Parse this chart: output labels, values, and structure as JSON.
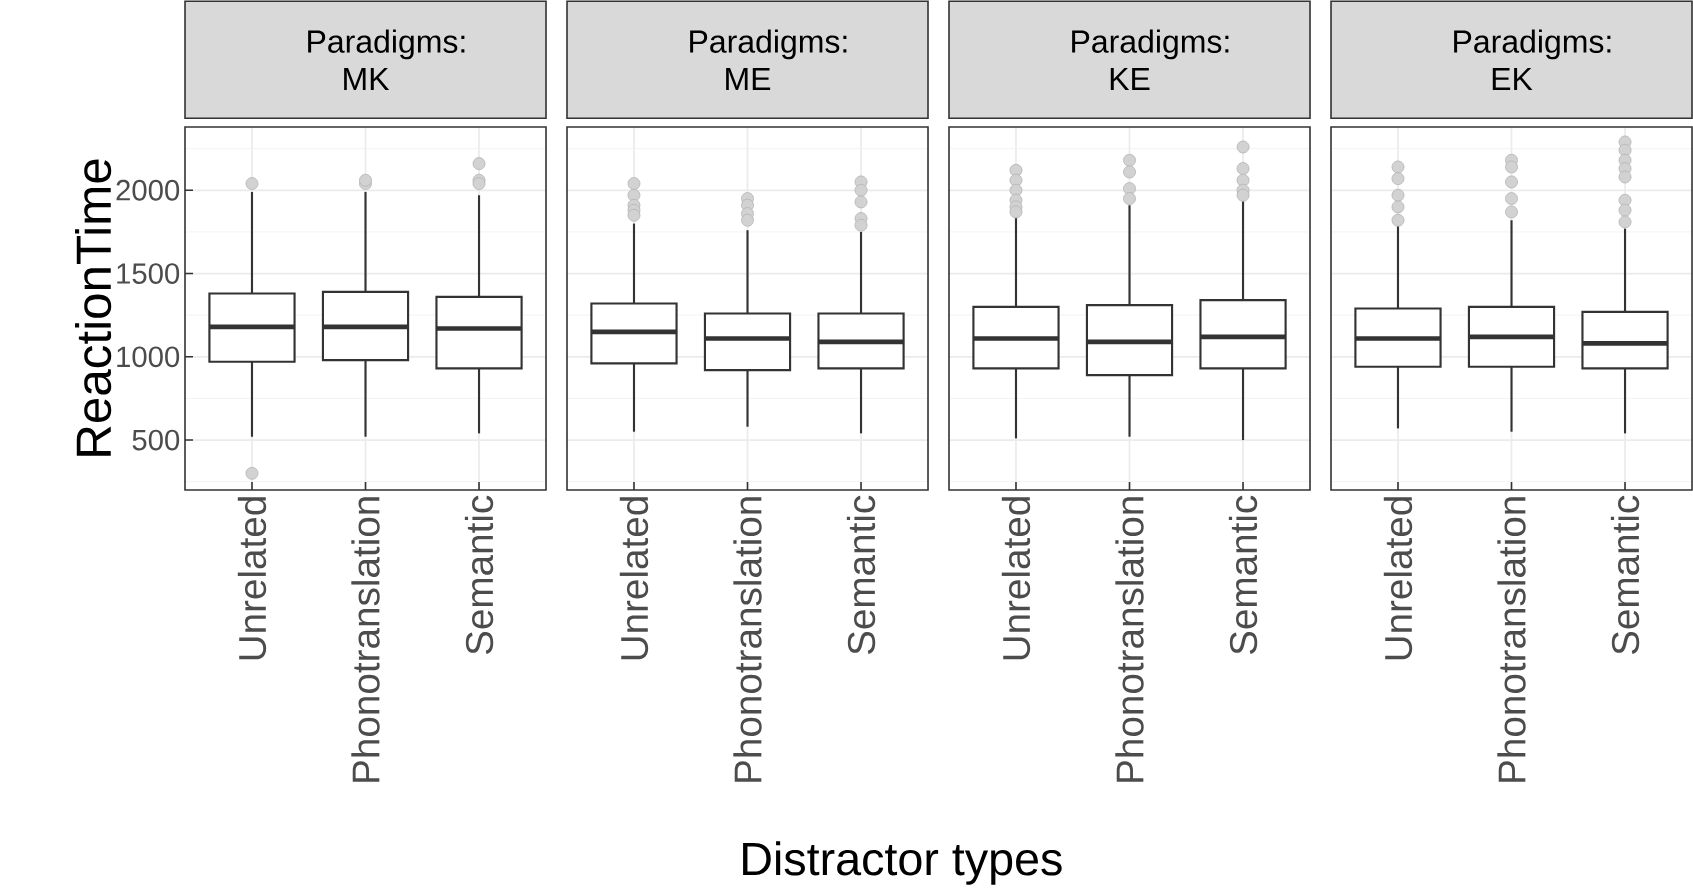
{
  "chart_data": [
    {
      "type": "box",
      "title": "Paradigms: MK",
      "ylabel": "ReactionTime",
      "categories": [
        "Unrelated",
        "Phonotranslation",
        "Semantic"
      ],
      "color": "#333333",
      "marker": "circle",
      "grid": true,
      "ylim": [
        200,
        2380
      ],
      "yticks": [
        500,
        1000,
        1500,
        2000
      ],
      "boxes": [
        {
          "low": 520,
          "q1": 970,
          "median": 1180,
          "q3": 1380,
          "high": 1990,
          "outliers": [
            2040,
            300
          ]
        },
        {
          "low": 520,
          "q1": 980,
          "median": 1180,
          "q3": 1390,
          "high": 1990,
          "outliers": [
            2040,
            2060
          ]
        },
        {
          "low": 540,
          "q1": 930,
          "median": 1170,
          "q3": 1360,
          "high": 1970,
          "outliers": [
            2160,
            2060,
            2040
          ]
        }
      ]
    },
    {
      "type": "box",
      "title": "Paradigms: ME",
      "xlabel": "Distractor types",
      "categories": [
        "Unrelated",
        "Phonotranslation",
        "Semantic"
      ],
      "color": "#333333",
      "marker": "circle",
      "grid": true,
      "ylim": [
        200,
        2380
      ],
      "yticks": [
        500,
        1000,
        1500,
        2000
      ],
      "tick_labels": "x",
      "boxes": [
        {
          "low": 550,
          "q1": 960,
          "median": 1150,
          "q3": 1320,
          "high": 1800,
          "outliers": [
            2040,
            1970,
            1910,
            1880,
            1850
          ]
        },
        {
          "low": 580,
          "q1": 920,
          "median": 1110,
          "q3": 1260,
          "high": 1760,
          "outliers": [
            1950,
            1910,
            1860,
            1820
          ]
        },
        {
          "low": 540,
          "q1": 930,
          "median": 1090,
          "q3": 1260,
          "high": 1750,
          "outliers": [
            2050,
            2000,
            1930,
            1830,
            1790
          ]
        }
      ]
    },
    {
      "type": "box",
      "title": "Paradigms: KE",
      "categories": [
        "Unrelated",
        "Phonotranslation",
        "Semantic"
      ],
      "color": "#333333",
      "marker": "circle",
      "grid": true,
      "ylim": [
        200,
        2380
      ],
      "yticks": [
        500,
        1000,
        1500,
        2000
      ],
      "tick_labels": "x",
      "boxes": [
        {
          "low": 510,
          "q1": 930,
          "median": 1110,
          "q3": 1300,
          "high": 1840,
          "outliers": [
            2120,
            2060,
            2000,
            1940,
            1900,
            1870
          ]
        },
        {
          "low": 520,
          "q1": 890,
          "median": 1090,
          "q3": 1310,
          "high": 1910,
          "outliers": [
            2180,
            2110,
            2010,
            1950
          ]
        },
        {
          "low": 500,
          "q1": 930,
          "median": 1120,
          "q3": 1340,
          "high": 1940,
          "outliers": [
            2260,
            2130,
            2060,
            2000,
            1970
          ]
        }
      ]
    },
    {
      "type": "box",
      "title": "Paradigms: EK",
      "categories": [
        "Unrelated",
        "Phonotranslation",
        "Semantic"
      ],
      "color": "#333333",
      "marker": "circle",
      "grid": true,
      "ylim": [
        200,
        2380
      ],
      "yticks": [
        500,
        1000,
        1500,
        2000
      ],
      "tick_labels": "x",
      "boxes": [
        {
          "low": 570,
          "q1": 940,
          "median": 1110,
          "q3": 1290,
          "high": 1790,
          "outliers": [
            2140,
            2070,
            1970,
            1900,
            1820
          ]
        },
        {
          "low": 550,
          "q1": 940,
          "median": 1120,
          "q3": 1300,
          "high": 1820,
          "outliers": [
            2180,
            2140,
            2050,
            1950,
            1870
          ]
        },
        {
          "low": 540,
          "q1": 930,
          "median": 1080,
          "q3": 1270,
          "high": 1770,
          "outliers": [
            2290,
            2240,
            2180,
            2130,
            2080,
            1940,
            1880,
            1810
          ]
        }
      ]
    }
  ]
}
